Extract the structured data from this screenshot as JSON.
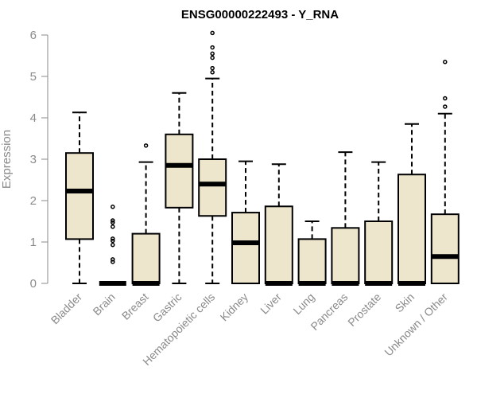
{
  "chart_data": {
    "type": "box",
    "title": "ENSG00000222493 - Y_RNA",
    "xlabel": "",
    "ylabel": "Expression",
    "ylim": [
      0,
      6
    ],
    "yticks": [
      "0",
      "1",
      "2",
      "3",
      "4",
      "5",
      "6"
    ],
    "categories": [
      "Bladder",
      "Brain",
      "Breast",
      "Gastric",
      "Hematopoietic cells",
      "Kidney",
      "Liver",
      "Lung",
      "Pancreas",
      "Prostate",
      "Skin",
      "Unknown / Other"
    ],
    "box_color": "#ede6cc",
    "boxes": [
      {
        "min": 0,
        "q1": 1.07,
        "median": 2.23,
        "q3": 3.15,
        "max": 4.13,
        "outliers": []
      },
      {
        "min": 0,
        "q1": 0,
        "median": 0,
        "q3": 0,
        "max": 0,
        "outliers": [
          0.52,
          0.58,
          0.93,
          1.03,
          1.08,
          1.37,
          1.47,
          1.52,
          1.85
        ]
      },
      {
        "min": 0,
        "q1": 0,
        "median": 0,
        "q3": 1.2,
        "max": 2.93,
        "outliers": [
          3.33
        ]
      },
      {
        "min": 0,
        "q1": 1.83,
        "median": 2.85,
        "q3": 3.6,
        "max": 4.6,
        "outliers": []
      },
      {
        "min": 0,
        "q1": 1.63,
        "median": 2.4,
        "q3": 3.0,
        "max": 4.95,
        "outliers": [
          5.1,
          5.2,
          5.45,
          5.55,
          5.7,
          6.05
        ]
      },
      {
        "min": 0,
        "q1": 0,
        "median": 0.98,
        "q3": 1.71,
        "max": 2.95,
        "outliers": []
      },
      {
        "min": 0,
        "q1": 0,
        "median": 0,
        "q3": 1.86,
        "max": 2.88,
        "outliers": []
      },
      {
        "min": 0,
        "q1": 0,
        "median": 0,
        "q3": 1.07,
        "max": 1.5,
        "outliers": []
      },
      {
        "min": 0,
        "q1": 0,
        "median": 0,
        "q3": 1.34,
        "max": 3.17,
        "outliers": []
      },
      {
        "min": 0,
        "q1": 0,
        "median": 0,
        "q3": 1.5,
        "max": 2.93,
        "outliers": []
      },
      {
        "min": 0,
        "q1": 0,
        "median": 0,
        "q3": 2.63,
        "max": 3.85,
        "outliers": []
      },
      {
        "min": 0,
        "q1": 0,
        "median": 0.65,
        "q3": 1.67,
        "max": 4.1,
        "outliers": [
          4.27,
          4.47,
          5.35
        ]
      }
    ]
  }
}
